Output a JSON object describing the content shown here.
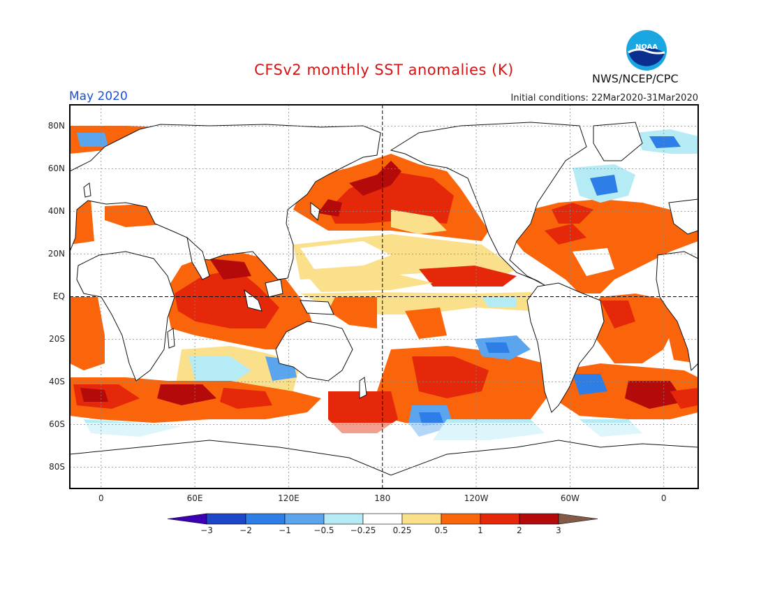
{
  "header": {
    "title": "CFSv2 monthly SST anomalies (K)",
    "month": "May 2020",
    "initial_conditions": "Initial conditions: 22Mar2020-31Mar2020",
    "organization": "NWS/NCEP/CPC",
    "logo_text": "NOAA"
  },
  "map": {
    "projection": "equirectangular",
    "lon_range": [
      -20,
      382
    ],
    "lat_range": [
      -90,
      90
    ],
    "grid": true,
    "lat_ticks": [
      {
        "lat": 80,
        "label": "80N"
      },
      {
        "lat": 60,
        "label": "60N"
      },
      {
        "lat": 40,
        "label": "40N"
      },
      {
        "lat": 20,
        "label": "20N"
      },
      {
        "lat": 0,
        "label": "EQ"
      },
      {
        "lat": -20,
        "label": "20S"
      },
      {
        "lat": -40,
        "label": "40S"
      },
      {
        "lat": -60,
        "label": "60S"
      },
      {
        "lat": -80,
        "label": "80S"
      }
    ],
    "lon_ticks": [
      {
        "lon": 0,
        "label": "0"
      },
      {
        "lon": 60,
        "label": "60E"
      },
      {
        "lon": 120,
        "label": "120E"
      },
      {
        "lon": 180,
        "label": "180"
      },
      {
        "lon": 240,
        "label": "120W"
      },
      {
        "lon": 300,
        "label": "60W"
      },
      {
        "lon": 360,
        "label": "0"
      }
    ]
  },
  "colorbar": {
    "levels": [
      "-3",
      "-2",
      "-1",
      "-0.5",
      "-0.25",
      "0.25",
      "0.5",
      "1",
      "2",
      "3"
    ],
    "colors": [
      "#1e46c8",
      "#2d7ee6",
      "#5aa5ee",
      "#b4ebf5",
      "#ffffff",
      "#fbe08c",
      "#fa640a",
      "#e6280a",
      "#b40a0a"
    ],
    "under_color": "#3c00b4",
    "over_color": "#825a46"
  },
  "colors": {
    "warm_light": "#fbe08c",
    "warm_mid": "#fa640a",
    "warm_strong": "#e6280a",
    "warm_extreme": "#b40a0a",
    "cool_light": "#b4ebf5",
    "cool_mid": "#5aa5ee",
    "cool_strong": "#2d7ee6"
  }
}
